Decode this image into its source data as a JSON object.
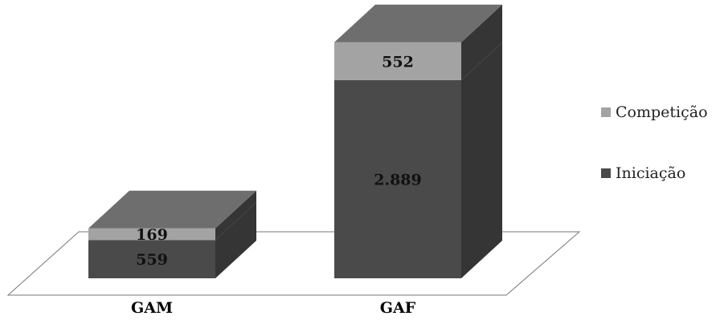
{
  "chart_data": {
    "type": "bar",
    "stacked": true,
    "three_d": true,
    "categories": [
      "GAM",
      "GAF"
    ],
    "series": [
      {
        "name": "Iniciação",
        "values": [
          559,
          2889
        ],
        "labels": [
          "559",
          "2.889"
        ],
        "color": "#4a4a4a"
      },
      {
        "name": "Competição",
        "values": [
          169,
          552
        ],
        "labels": [
          "169",
          "552"
        ],
        "color": "#a3a3a3"
      }
    ],
    "title": "",
    "xlabel": "",
    "ylabel": "",
    "ylim": [
      0,
      3441
    ],
    "grid": false,
    "legend_position": "right"
  }
}
